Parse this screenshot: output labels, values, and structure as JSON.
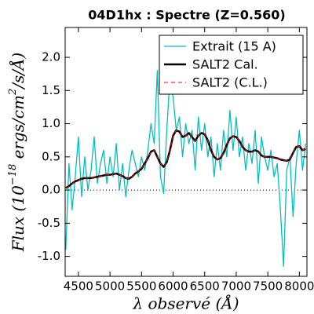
{
  "chart_data": {
    "type": "line",
    "title": "04D1hx : Spectre (Z=0.560)",
    "x_label": "λ observé (Å)",
    "y_label": [
      "Flux (10",
      "−18",
      " ergs/cm",
      "2",
      "/s/Å)"
    ],
    "x": [
      4300,
      4350,
      4400,
      4450,
      4500,
      4550,
      4600,
      4650,
      4700,
      4750,
      4800,
      4850,
      4900,
      4950,
      5000,
      5050,
      5100,
      5150,
      5200,
      5250,
      5300,
      5350,
      5400,
      5450,
      5500,
      5550,
      5600,
      5650,
      5700,
      5750,
      5800,
      5850,
      5900,
      5950,
      6000,
      6050,
      6100,
      6150,
      6200,
      6250,
      6300,
      6350,
      6400,
      6450,
      6500,
      6550,
      6600,
      6650,
      6700,
      6750,
      6800,
      6850,
      6900,
      6950,
      7000,
      7050,
      7100,
      7150,
      7200,
      7250,
      7300,
      7350,
      7400,
      7450,
      7500,
      7550,
      7600,
      7650,
      7700,
      7750,
      7800,
      7850,
      7900,
      7950,
      8000,
      8050,
      8100
    ],
    "series": [
      {
        "name": "Extrait (15 A)",
        "color": "#00bfbf",
        "width": 1.3,
        "dash": "none",
        "values": [
          -0.9,
          0.4,
          -0.3,
          0.2,
          0.8,
          -0.1,
          0.5,
          0.0,
          0.3,
          0.8,
          0.1,
          0.4,
          0.6,
          0.1,
          0.5,
          0.2,
          0.7,
          0.0,
          0.4,
          -0.1,
          0.3,
          0.6,
          0.4,
          0.2,
          0.5,
          0.3,
          0.6,
          1.0,
          0.7,
          1.8,
          0.2,
          -0.05,
          0.9,
          1.7,
          1.4,
          0.9,
          1.1,
          0.5,
          1.0,
          0.7,
          0.9,
          0.3,
          1.1,
          0.6,
          1.0,
          0.5,
          0.8,
          0.2,
          0.7,
          0.3,
          0.9,
          0.5,
          1.2,
          0.6,
          1.1,
          0.5,
          0.8,
          0.3,
          0.7,
          0.4,
          0.9,
          0.1,
          0.8,
          0.5,
          0.3,
          0.6,
          0.2,
          0.4,
          -0.3,
          -1.15,
          0.3,
          0.5,
          -0.4,
          0.4,
          0.9,
          0.3,
          0.7
        ]
      },
      {
        "name": "SALT2 Cal.",
        "color": "#000000",
        "width": 2.5,
        "dash": "none",
        "values": [
          0.03,
          0.06,
          0.1,
          0.13,
          0.15,
          0.17,
          0.18,
          0.18,
          0.18,
          0.19,
          0.2,
          0.21,
          0.22,
          0.23,
          0.23,
          0.24,
          0.25,
          0.23,
          0.21,
          0.18,
          0.17,
          0.2,
          0.25,
          0.28,
          0.32,
          0.4,
          0.48,
          0.58,
          0.6,
          0.5,
          0.4,
          0.35,
          0.42,
          0.6,
          0.82,
          0.9,
          0.88,
          0.8,
          0.82,
          0.86,
          0.8,
          0.74,
          0.82,
          0.86,
          0.84,
          0.75,
          0.6,
          0.5,
          0.46,
          0.48,
          0.56,
          0.68,
          0.78,
          0.81,
          0.8,
          0.74,
          0.65,
          0.6,
          0.58,
          0.58,
          0.6,
          0.58,
          0.52,
          0.5,
          0.5,
          0.5,
          0.49,
          0.48,
          0.46,
          0.45,
          0.44,
          0.46,
          0.56,
          0.65,
          0.66,
          0.6,
          0.62
        ]
      },
      {
        "name": "SALT2 (C.L.)",
        "color": "#ff0000",
        "width": 1,
        "dash": "5,4",
        "values": [
          0.03,
          0.06,
          0.1,
          0.13,
          0.15,
          0.17,
          0.18,
          0.18,
          0.18,
          0.19,
          0.2,
          0.21,
          0.22,
          0.23,
          0.23,
          0.24,
          0.25,
          0.23,
          0.21,
          0.18,
          0.17,
          0.2,
          0.25,
          0.28,
          0.32,
          0.4,
          0.48,
          0.58,
          0.6,
          0.5,
          0.4,
          0.35,
          0.42,
          0.6,
          0.82,
          0.9,
          0.88,
          0.8,
          0.82,
          0.86,
          0.8,
          0.74,
          0.82,
          0.86,
          0.84,
          0.75,
          0.6,
          0.5,
          0.46,
          0.48,
          0.56,
          0.68,
          0.78,
          0.81,
          0.8,
          0.74,
          0.65,
          0.6,
          0.58,
          0.58,
          0.6,
          0.58,
          0.52,
          0.5,
          0.5,
          0.5,
          0.49,
          0.48,
          0.46,
          0.45,
          0.44,
          0.46,
          0.56,
          0.65,
          0.66,
          0.6,
          0.62
        ]
      }
    ],
    "reference_line": 0,
    "xlim": [
      4290,
      8120
    ],
    "xticks": [
      4500,
      5000,
      5500,
      6000,
      6500,
      7000,
      7500,
      8000
    ],
    "ylim": [
      -1.3,
      2.45
    ],
    "yticks": [
      {
        "value": -1,
        "label": "-1.0"
      },
      -0.5,
      {
        "value": 0,
        "label": "0.0"
      },
      0.5,
      {
        "value": 1,
        "label": "1.0"
      },
      1.5,
      {
        "value": 2,
        "label": "2.0"
      }
    ],
    "legend": "upper right",
    "grid": false
  }
}
